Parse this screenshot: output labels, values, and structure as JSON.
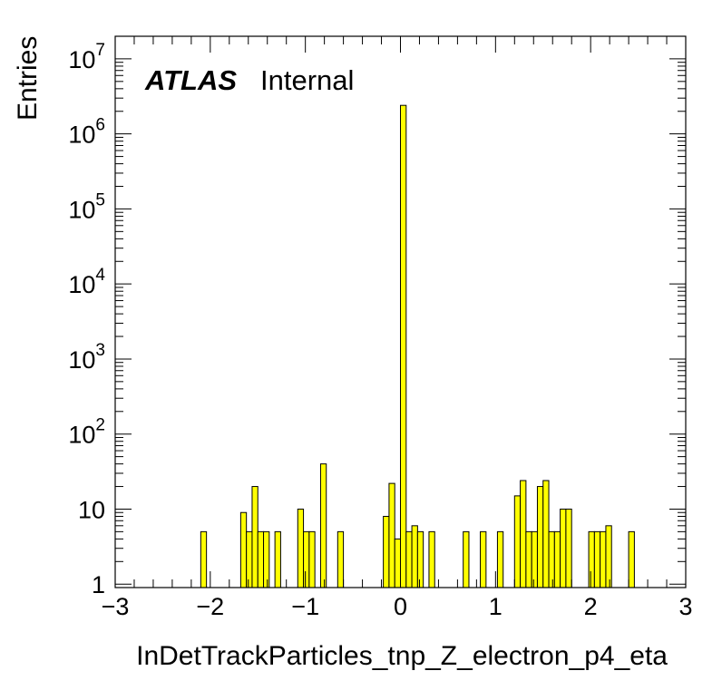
{
  "chart_data": {
    "type": "bar",
    "style": "step-filled histogram",
    "xlabel": "InDetTrackParticles_tnp_Z_electron_p4_eta",
    "ylabel": "Entries",
    "xlim": [
      -3,
      3
    ],
    "ylim": [
      0.9,
      20000000
    ],
    "y_scale": "log",
    "grid": false,
    "fill_color": "#ffff00",
    "line_color": "#000000",
    "bin_width": 0.06,
    "x_ticks": [
      -3,
      -2,
      -1,
      0,
      1,
      2,
      3
    ],
    "x_tick_labels": [
      "−3",
      "−2",
      "−1",
      "0",
      "1",
      "2",
      "3"
    ],
    "y_ticks": [
      {
        "value": 1,
        "label": "1",
        "exp": ""
      },
      {
        "value": 10,
        "label": "10",
        "exp": ""
      },
      {
        "value": 100,
        "label": "10",
        "exp": "2"
      },
      {
        "value": 1000,
        "label": "10",
        "exp": "3"
      },
      {
        "value": 10000,
        "label": "10",
        "exp": "4"
      },
      {
        "value": 100000,
        "label": "10",
        "exp": "5"
      },
      {
        "value": 1000000,
        "label": "10",
        "exp": "6"
      },
      {
        "value": 10000000,
        "label": "10",
        "exp": "7"
      }
    ],
    "annotation": {
      "atlas": "ATLAS",
      "status": "Internal"
    },
    "bins": [
      {
        "x": -2.1,
        "y": 5
      },
      {
        "x": -1.68,
        "y": 9
      },
      {
        "x": -1.62,
        "y": 5
      },
      {
        "x": -1.56,
        "y": 20
      },
      {
        "x": -1.5,
        "y": 5
      },
      {
        "x": -1.44,
        "y": 5
      },
      {
        "x": -1.32,
        "y": 5
      },
      {
        "x": -1.08,
        "y": 10
      },
      {
        "x": -1.02,
        "y": 5
      },
      {
        "x": -0.96,
        "y": 5
      },
      {
        "x": -0.84,
        "y": 40
      },
      {
        "x": -0.66,
        "y": 5
      },
      {
        "x": -0.18,
        "y": 8
      },
      {
        "x": -0.12,
        "y": 22
      },
      {
        "x": -0.06,
        "y": 4
      },
      {
        "x": 0.0,
        "y": 2400000
      },
      {
        "x": 0.06,
        "y": 5
      },
      {
        "x": 0.12,
        "y": 6
      },
      {
        "x": 0.18,
        "y": 5
      },
      {
        "x": 0.3,
        "y": 5
      },
      {
        "x": 0.66,
        "y": 5
      },
      {
        "x": 0.84,
        "y": 5
      },
      {
        "x": 1.02,
        "y": 5
      },
      {
        "x": 1.2,
        "y": 15
      },
      {
        "x": 1.26,
        "y": 24
      },
      {
        "x": 1.32,
        "y": 5
      },
      {
        "x": 1.38,
        "y": 5
      },
      {
        "x": 1.44,
        "y": 20
      },
      {
        "x": 1.5,
        "y": 24
      },
      {
        "x": 1.56,
        "y": 5
      },
      {
        "x": 1.62,
        "y": 5
      },
      {
        "x": 1.68,
        "y": 10
      },
      {
        "x": 1.74,
        "y": 10
      },
      {
        "x": 1.98,
        "y": 5
      },
      {
        "x": 2.04,
        "y": 5
      },
      {
        "x": 2.1,
        "y": 5
      },
      {
        "x": 2.16,
        "y": 6
      },
      {
        "x": 2.4,
        "y": 5
      }
    ]
  }
}
